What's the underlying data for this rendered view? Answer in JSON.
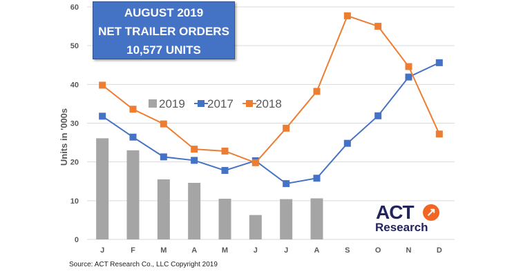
{
  "chart_data": {
    "type": "bar+line",
    "categories": [
      "J",
      "F",
      "M",
      "A",
      "M",
      "J",
      "J",
      "A",
      "S",
      "O",
      "N",
      "D"
    ],
    "ylabel": "Units in '000s",
    "ylim": [
      0,
      60
    ],
    "yticks": [
      0,
      10,
      20,
      30,
      40,
      50,
      60
    ],
    "grid": true,
    "legend_placement": "center-left",
    "series": [
      {
        "name": "2019",
        "type": "bar",
        "color": "#A5A5A5",
        "values": [
          26.1,
          23.0,
          15.5,
          14.6,
          10.5,
          6.3,
          10.4,
          10.6,
          null,
          null,
          null,
          null
        ]
      },
      {
        "name": "2017",
        "type": "line",
        "color": "#4472C4",
        "values": [
          31.8,
          26.4,
          21.3,
          20.4,
          17.8,
          20.3,
          14.4,
          15.8,
          24.8,
          31.9,
          41.9,
          45.6
        ]
      },
      {
        "name": "2018",
        "type": "line",
        "color": "#ED7D31",
        "values": [
          39.8,
          33.6,
          29.8,
          23.3,
          22.8,
          19.8,
          28.7,
          38.2,
          57.7,
          55.0,
          44.6,
          27.2
        ]
      }
    ]
  },
  "callout": {
    "line1": "AUGUST 2019",
    "line2": "NET TRAILER ORDERS",
    "line3": "10,577 UNITS"
  },
  "logo": {
    "text1": "ACT",
    "text2": "Research"
  },
  "source": "Source: ACT Research Co., LLC  Copyright 2019"
}
